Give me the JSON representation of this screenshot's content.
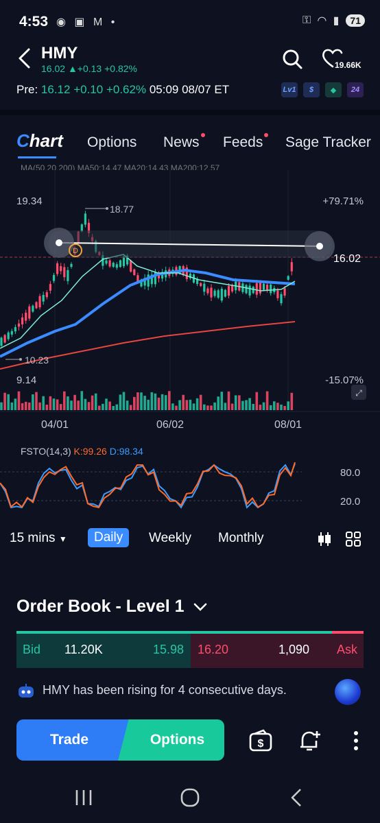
{
  "status": {
    "time": "4:53",
    "battery": "71"
  },
  "header": {
    "ticker": "HMY",
    "price": "16.02",
    "change": "+0.13",
    "change_pct": "+0.82%",
    "favorites": "19.66K",
    "pre_label": "Pre:",
    "pre_price": "16.12",
    "pre_change": "+0.10",
    "pre_change_pct": "+0.62%",
    "pre_time": "05:09 08/07 ET",
    "badges": [
      "Lv1",
      "$",
      "◆",
      "24"
    ]
  },
  "tabs": {
    "chart_c": "C",
    "chart_rest": "hart",
    "options": "Options",
    "news": "News",
    "feeds": "Feeds",
    "sage": "Sage Tracker"
  },
  "chart": {
    "ma_legend": "MA(50,20,200)  MA50:14.47  MA20:14.43  MA200:12.57",
    "high_label": "19.34",
    "low_label": "9.14",
    "max_pct": "+79.71%",
    "min_pct": "-15.07%",
    "peak_label": "18.77",
    "trough_label": "10.23",
    "last_price": "16.02",
    "marker": "D",
    "x_labels": [
      "04/01",
      "06/02",
      "08/01"
    ]
  },
  "chart_data": {
    "type": "line",
    "title": "",
    "x_ticks": [
      "04/01",
      "06/02",
      "08/01"
    ],
    "y_range": [
      9.14,
      19.34
    ],
    "series": [
      {
        "name": "MA50",
        "color": "#3b8cff"
      },
      {
        "name": "MA20",
        "color": "#7ff0d6"
      },
      {
        "name": "MA200",
        "color": "#e8463f"
      }
    ],
    "annotations": {
      "high": 18.77,
      "low": 10.23,
      "last": 16.02
    }
  },
  "stoch": {
    "name": "FSTO(14,3)",
    "k": "K:99.26",
    "d": "D:98.34",
    "levels": [
      "80.0",
      "20.0"
    ]
  },
  "periods": {
    "interval": "15 mins",
    "daily": "Daily",
    "weekly": "Weekly",
    "monthly": "Monthly"
  },
  "orderbook": {
    "title": "Order Book - Level 1",
    "bid_label": "Bid",
    "bid_size": "11.20K",
    "bid_price": "15.98",
    "ask_price": "16.20",
    "ask_size": "1,090",
    "ask_label": "Ask"
  },
  "message": "HMY has been rising for 4 consecutive days.",
  "actions": {
    "trade": "Trade",
    "options": "Options"
  },
  "colors": {
    "up": "#26c6a4",
    "down": "#ff4d6d",
    "accent": "#3b8cff",
    "bg": "#0d1120"
  }
}
